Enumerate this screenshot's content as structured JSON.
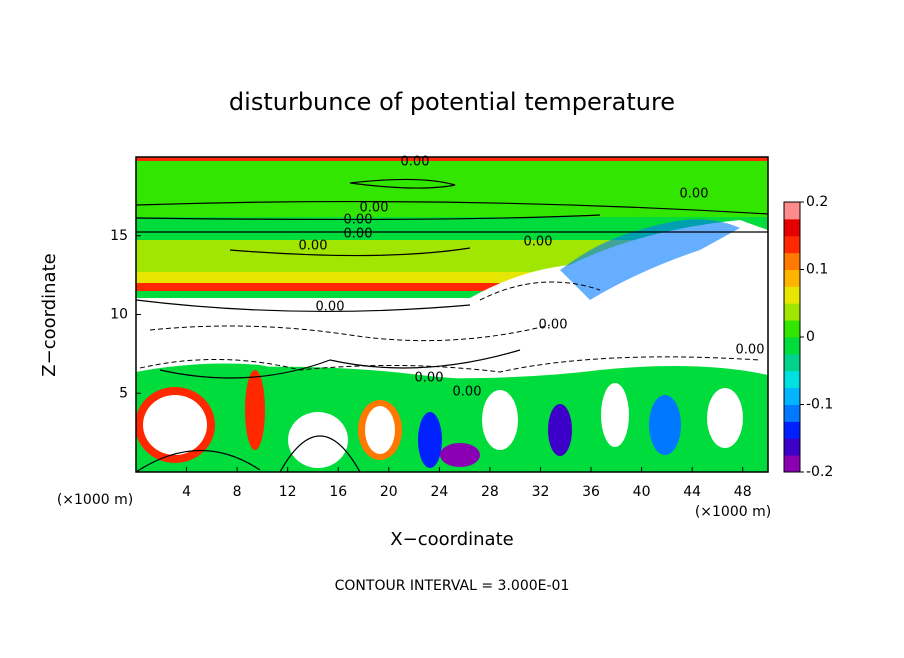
{
  "chart_data": {
    "type": "contour",
    "title": "disturbunce of potential temperature",
    "x_label": "X−coordinate",
    "y_label": "Z−coordinate",
    "x_unit": "(×1000 m)",
    "z_unit": "(×1000 m)",
    "footnote": "CONTOUR INTERVAL = 3.000E-01",
    "xlim": [
      0,
      50
    ],
    "xticks": [
      4,
      8,
      12,
      16,
      20,
      24,
      28,
      32,
      36,
      40,
      44,
      48
    ],
    "ylim": [
      0,
      20
    ],
    "yticks": [
      5,
      10,
      15
    ],
    "contour_labels": [
      "0.00",
      "0.00",
      "0.00",
      "0.00",
      "0.00",
      "0.00",
      "0.00",
      "0.00",
      "0.00",
      "0.00",
      "0.00",
      "0.00"
    ],
    "colorbar": {
      "lim": [
        -0.2,
        0.2
      ],
      "ticks": [
        -0.2,
        -0.1,
        0,
        0.1,
        0.2
      ],
      "colors": [
        "#8c00b4",
        "#3c00c8",
        "#0020ff",
        "#0078ff",
        "#00b4ff",
        "#00e0e0",
        "#00d28c",
        "#00dc3c",
        "#32e600",
        "#a0e600",
        "#e6e600",
        "#ffb400",
        "#ff7800",
        "#ff2800",
        "#e60000",
        "#ff8c8c"
      ]
    }
  }
}
